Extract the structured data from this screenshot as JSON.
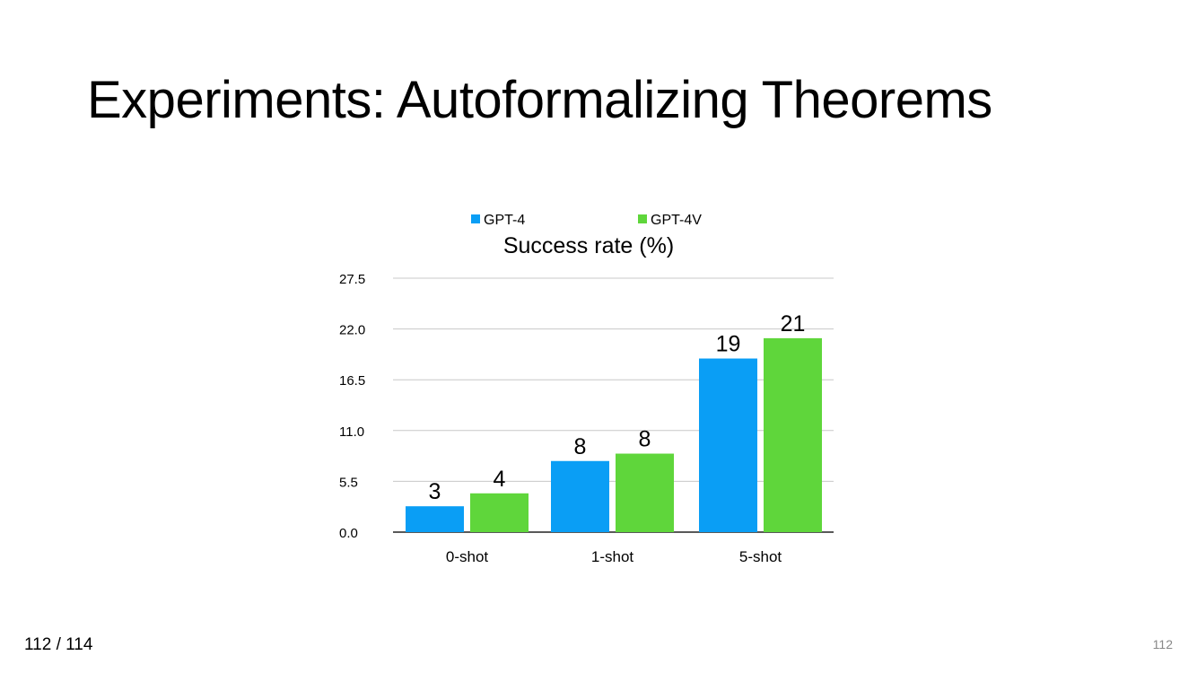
{
  "slide": {
    "title": "Experiments: Autoformalizing Theorems",
    "page_counter": "112 / 114",
    "page_number": "112"
  },
  "chart_data": {
    "type": "bar",
    "title": "Success rate (%)",
    "categories": [
      "0-shot",
      "1-shot",
      "5-shot"
    ],
    "series": [
      {
        "name": "GPT-4",
        "color": "#0a9ef5",
        "values": [
          2.8,
          7.7,
          18.8
        ],
        "labels": [
          "3",
          "8",
          "19"
        ]
      },
      {
        "name": "GPT-4V",
        "color": "#5fd63b",
        "values": [
          4.2,
          8.5,
          21.0
        ],
        "labels": [
          "4",
          "8",
          "21"
        ]
      }
    ],
    "yticks": [
      "0.0",
      "5.5",
      "11.0",
      "16.5",
      "22.0",
      "27.5"
    ],
    "ylim": [
      0,
      27.5
    ],
    "grid": true,
    "legend_position": "top"
  }
}
